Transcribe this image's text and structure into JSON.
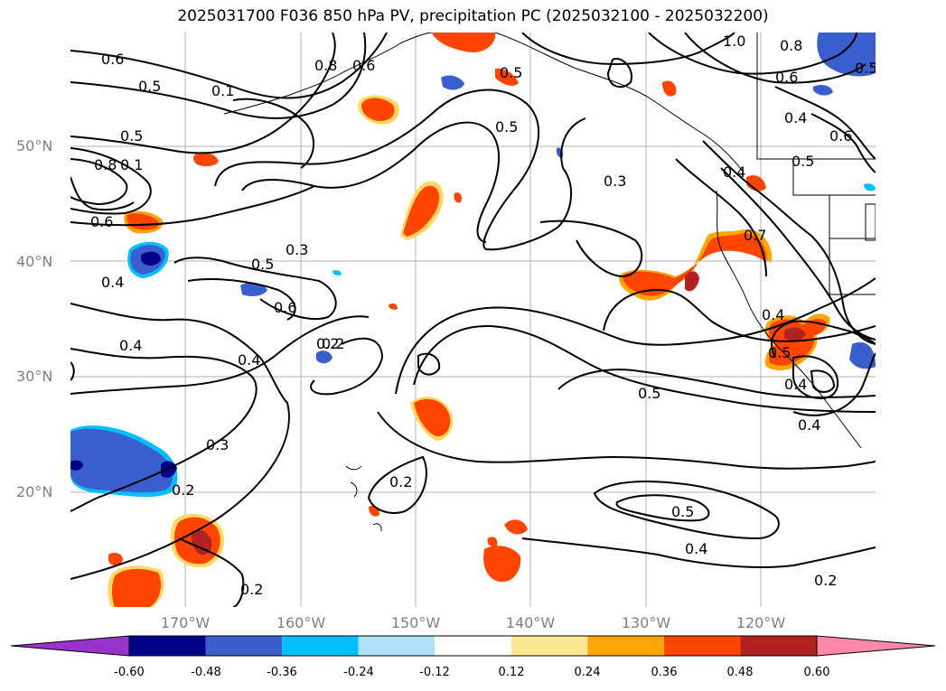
{
  "title": "2025031700 F036 850 hPa PV, precipitation PC (2025032100 - 2025032200)",
  "axes": {
    "lat_labels": [
      "50°N",
      "40°N",
      "30°N",
      "20°N"
    ],
    "lon_labels": [
      "170°W",
      "160°W",
      "150°W",
      "140°W",
      "130°W",
      "120°W"
    ]
  },
  "contour_labels": [
    "0.6",
    "0.5",
    "0.1",
    "0.8",
    "0.6",
    "0.5",
    "0.4",
    "0.3",
    "0.5",
    "0.6",
    "0.4",
    "0.2",
    "0.4",
    "0.3",
    "0.2",
    "0.2",
    "0.2",
    "0.2",
    "0.5",
    "0.3",
    "0.5",
    "0.4",
    "0.5",
    "0.4",
    "0.5",
    "1.0",
    "0.8",
    "0.6",
    "0.4",
    "0.6",
    "0.5",
    "0.4",
    "0.7",
    "0.4",
    "0.2",
    "0.5",
    "0.4",
    "0.8",
    "0.1",
    "0.6",
    "0.5"
  ],
  "colorbar": {
    "ticks": [
      "-0.60",
      "-0.48",
      "-0.36",
      "-0.24",
      "-0.12",
      "0.12",
      "0.24",
      "0.36",
      "0.48",
      "0.60"
    ],
    "colors": [
      "#9933cc",
      "#00008b",
      "#3a5fcd",
      "#00bfff",
      "#aee0fa",
      "#ffffff",
      "#fce891",
      "#ffa500",
      "#ff4500",
      "#b22222",
      "#ff88aa"
    ]
  }
}
